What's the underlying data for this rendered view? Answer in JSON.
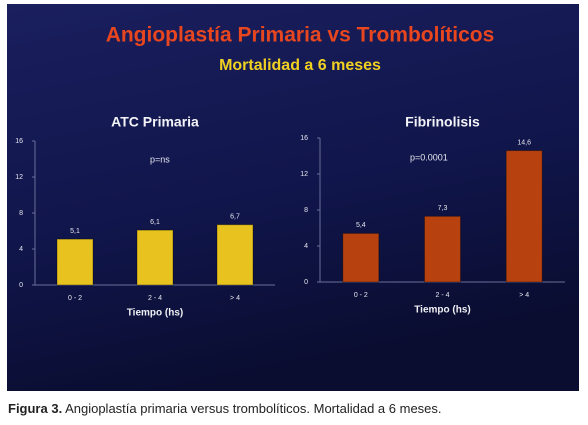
{
  "slide": {
    "title": "Angioplastía Primaria vs Trombolíticos",
    "subtitle": "Mortalidad a 6 meses"
  },
  "chart_data": [
    {
      "type": "bar",
      "title": "ATC Primaria",
      "annotation": "p=ns",
      "x_label": "Tiempo (hs)",
      "categories": [
        "0 - 2",
        "2 - 4",
        "> 4"
      ],
      "values": [
        5.1,
        6.1,
        6.7
      ],
      "value_labels": [
        "5,1",
        "6,1",
        "6,7"
      ],
      "color": "#e8c21e",
      "ylim": [
        0,
        16
      ],
      "yticks": [
        0,
        4,
        8,
        12,
        16
      ],
      "grid": false
    },
    {
      "type": "bar",
      "title": "Fibrinolisis",
      "annotation": "p=0.0001",
      "x_label": "Tiempo (hs)",
      "categories": [
        "0 - 2",
        "2 - 4",
        "> 4"
      ],
      "values": [
        5.4,
        7.3,
        14.6
      ],
      "value_labels": [
        "5,4",
        "7,3",
        "14,6"
      ],
      "color": "#b8420f",
      "ylim": [
        0,
        16
      ],
      "yticks": [
        0,
        4,
        8,
        12,
        16
      ],
      "grid": false
    }
  ],
  "caption": {
    "label": "Figura 3.",
    "text": " Angioplastía primaria versus trombolíticos. Mortalidad a 6 meses."
  }
}
